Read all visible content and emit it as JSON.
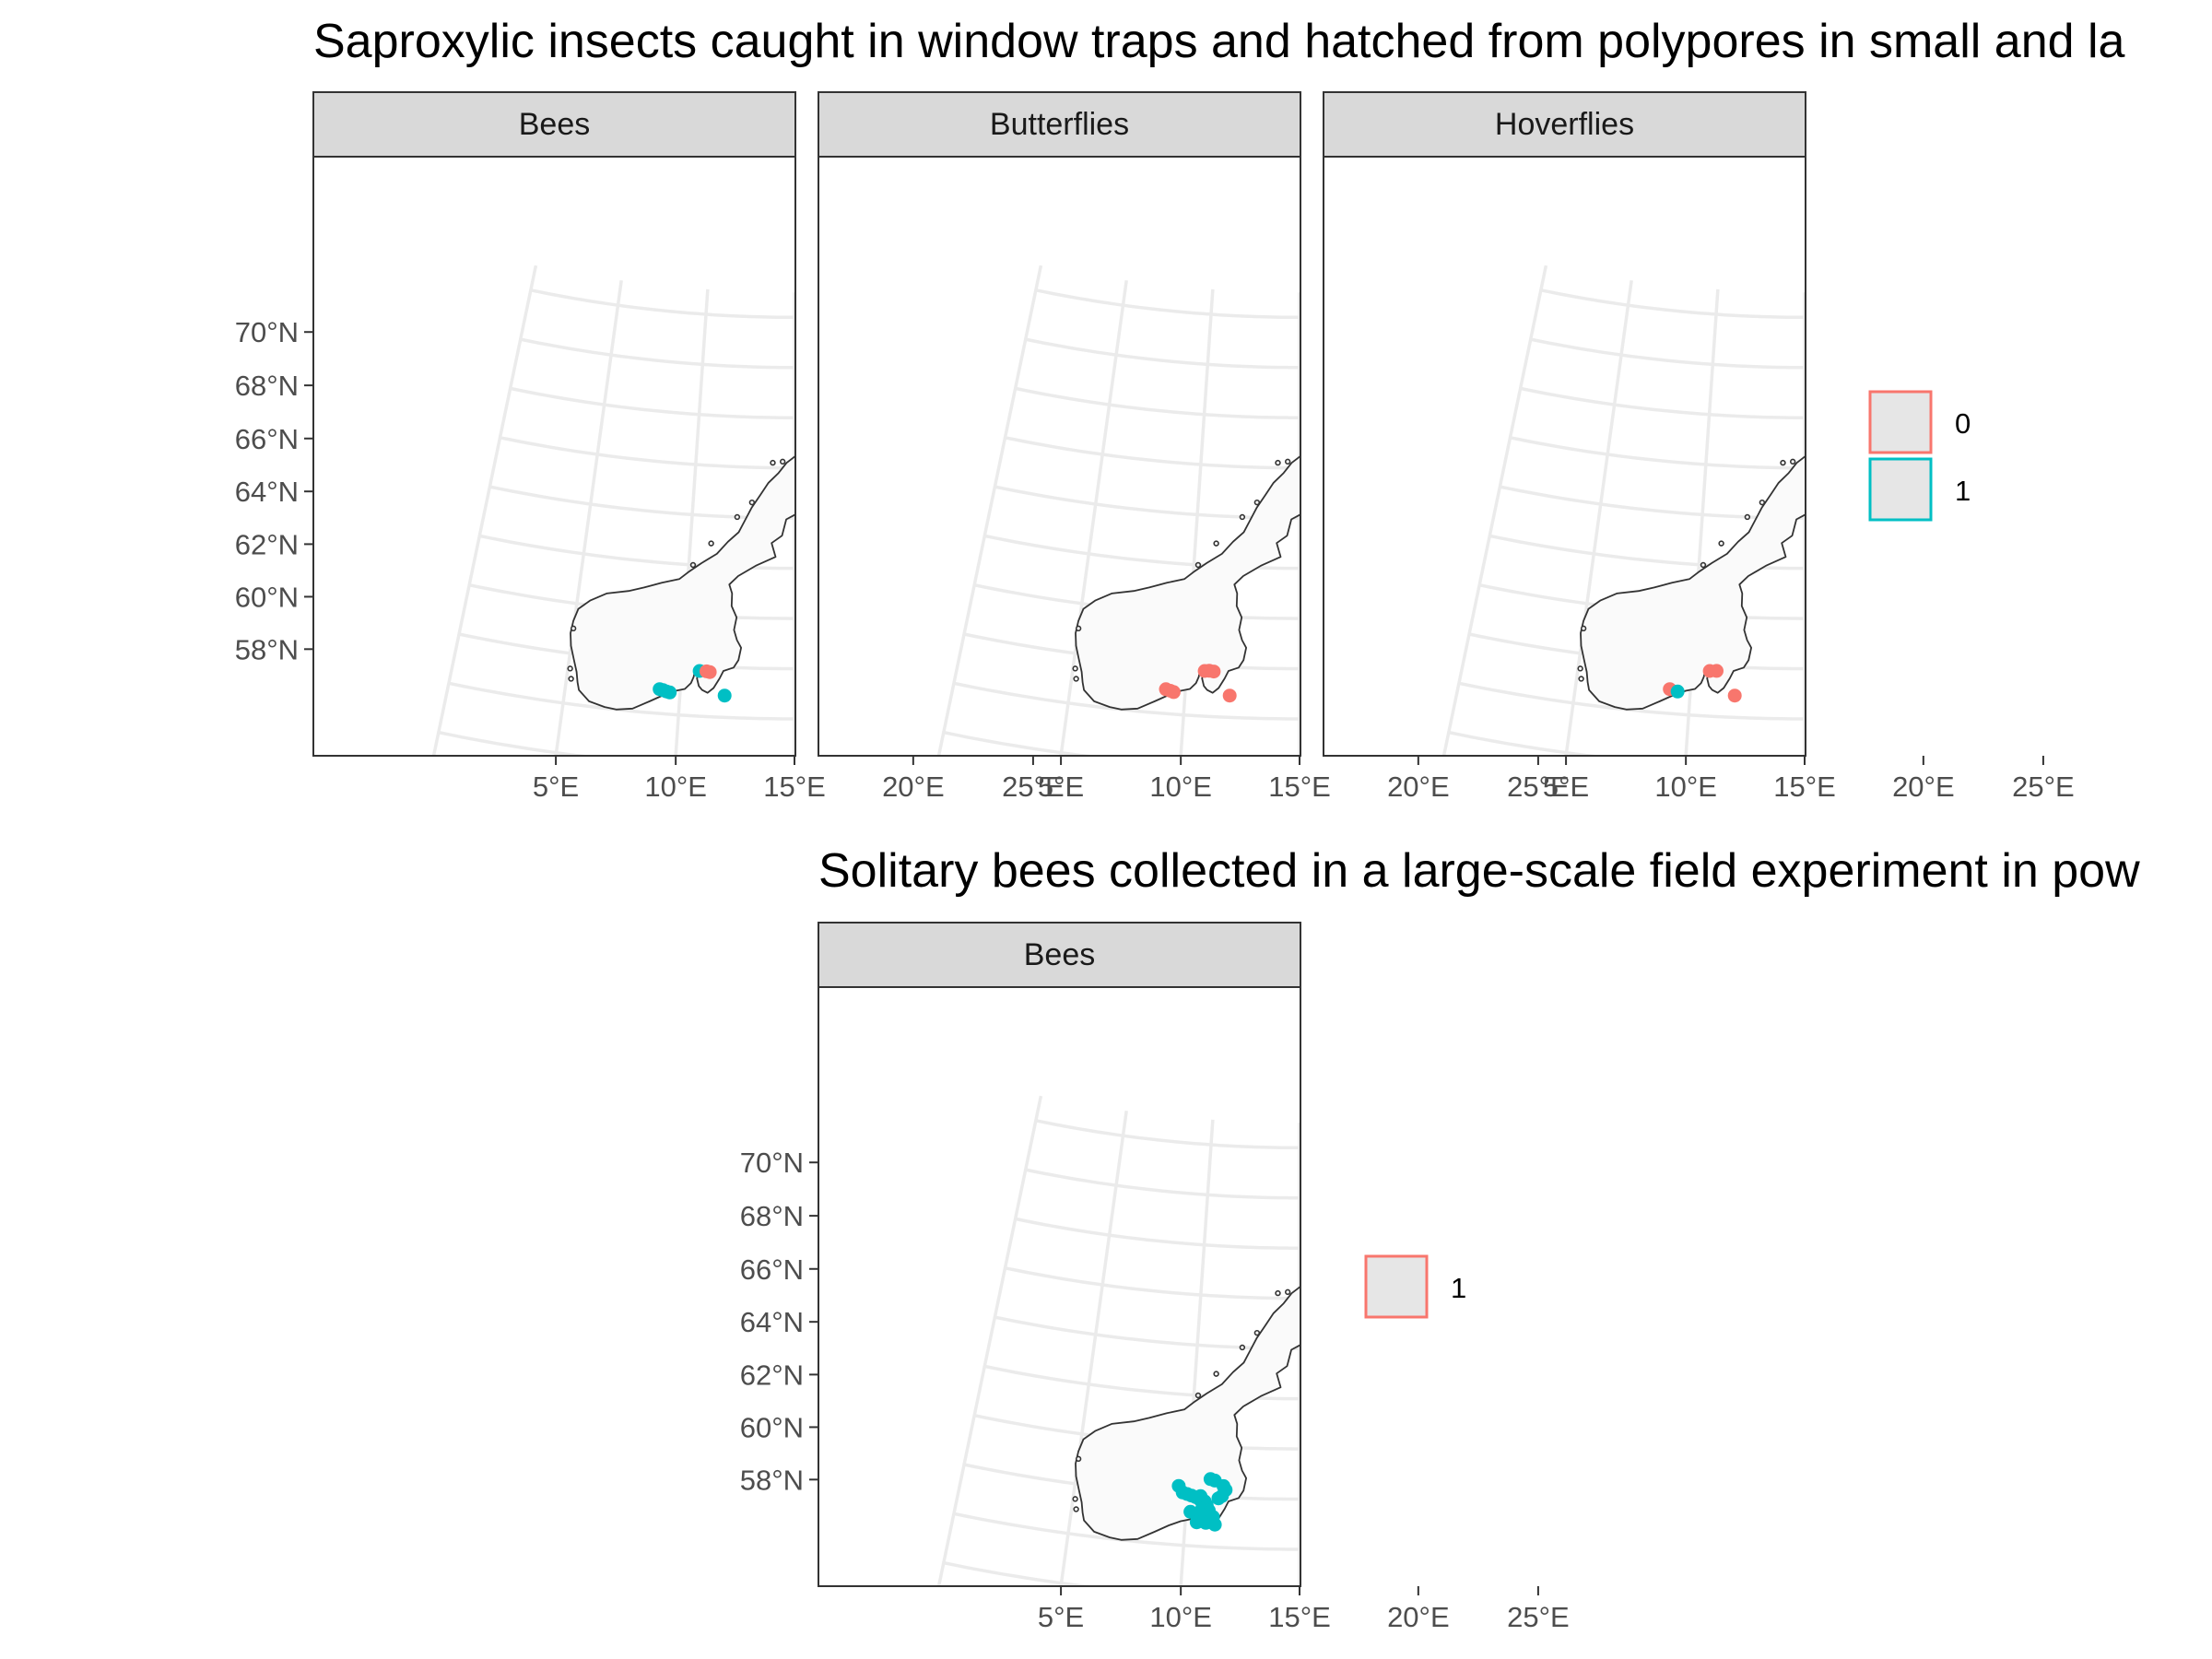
{
  "maps": [
    {
      "title": "Saproxylic insects caught in window traps and hatched from polypores in small and la",
      "facets": [
        {
          "label": "Bees",
          "points": [
            {
              "lon": 10.8,
              "lat": 59.8,
              "group": "1"
            },
            {
              "lon": 11.1,
              "lat": 59.8,
              "group": "0"
            },
            {
              "lon": 11.25,
              "lat": 59.78,
              "group": "0"
            },
            {
              "lon": 9.1,
              "lat": 58.97,
              "group": "1"
            },
            {
              "lon": 9.25,
              "lat": 58.94,
              "group": "1"
            },
            {
              "lon": 9.4,
              "lat": 58.9,
              "group": "1"
            },
            {
              "lon": 9.55,
              "lat": 58.87,
              "group": "1"
            },
            {
              "lon": 11.95,
              "lat": 58.87,
              "group": "1"
            }
          ]
        },
        {
          "label": "Butterflies",
          "points": [
            {
              "lon": 10.8,
              "lat": 59.8,
              "group": "0"
            },
            {
              "lon": 11.0,
              "lat": 59.82,
              "group": "0"
            },
            {
              "lon": 11.2,
              "lat": 59.8,
              "group": "0"
            },
            {
              "lon": 9.15,
              "lat": 58.97,
              "group": "0"
            },
            {
              "lon": 9.35,
              "lat": 58.92,
              "group": "0"
            },
            {
              "lon": 9.5,
              "lat": 58.88,
              "group": "0"
            },
            {
              "lon": 11.95,
              "lat": 58.87,
              "group": "0"
            }
          ]
        },
        {
          "label": "Hoverflies",
          "points": [
            {
              "lon": 10.8,
              "lat": 59.8,
              "group": "0"
            },
            {
              "lon": 11.1,
              "lat": 59.82,
              "group": "0"
            },
            {
              "lon": 9.1,
              "lat": 58.97,
              "group": "0"
            },
            {
              "lon": 9.45,
              "lat": 58.9,
              "group": "1"
            },
            {
              "lon": 11.95,
              "lat": 58.87,
              "group": "0"
            }
          ]
        }
      ],
      "legend": [
        {
          "label": "0",
          "color": "#F8766D"
        },
        {
          "label": "1",
          "color": "#00BFC4"
        }
      ]
    },
    {
      "title": "Solitary bees collected in a large-scale field experiment in pow",
      "facets": [
        {
          "label": "Bees",
          "points": [
            {
              "lon": 9.6,
              "lat": 60.35,
              "group": "1"
            },
            {
              "lon": 9.8,
              "lat": 60.1,
              "group": "1"
            },
            {
              "lon": 10.0,
              "lat": 60.05,
              "group": "1"
            },
            {
              "lon": 10.2,
              "lat": 60.0,
              "group": "1"
            },
            {
              "lon": 10.4,
              "lat": 59.95,
              "group": "1"
            },
            {
              "lon": 10.6,
              "lat": 60.0,
              "group": "1"
            },
            {
              "lon": 10.6,
              "lat": 59.85,
              "group": "1"
            },
            {
              "lon": 10.8,
              "lat": 59.8,
              "group": "1"
            },
            {
              "lon": 10.9,
              "lat": 59.65,
              "group": "1"
            },
            {
              "lon": 10.7,
              "lat": 59.5,
              "group": "1"
            },
            {
              "lon": 11.0,
              "lat": 59.45,
              "group": "1"
            },
            {
              "lon": 10.2,
              "lat": 59.35,
              "group": "1"
            },
            {
              "lon": 10.6,
              "lat": 59.3,
              "group": "1"
            },
            {
              "lon": 11.2,
              "lat": 59.2,
              "group": "1"
            },
            {
              "lon": 10.5,
              "lat": 58.95,
              "group": "1"
            },
            {
              "lon": 10.9,
              "lat": 58.95,
              "group": "1"
            },
            {
              "lon": 11.3,
              "lat": 58.9,
              "group": "1"
            },
            {
              "lon": 11.0,
              "lat": 60.7,
              "group": "1"
            },
            {
              "lon": 11.2,
              "lat": 60.65,
              "group": "1"
            },
            {
              "lon": 11.6,
              "lat": 60.45,
              "group": "1"
            },
            {
              "lon": 11.7,
              "lat": 60.3,
              "group": "1"
            },
            {
              "lon": 11.55,
              "lat": 60.05,
              "group": "1"
            },
            {
              "lon": 11.4,
              "lat": 59.95,
              "group": "1"
            }
          ]
        }
      ],
      "legend": [
        {
          "label": "1",
          "color": "#F8766D"
        }
      ]
    }
  ],
  "axes": {
    "lat_ticks": [
      58,
      60,
      62,
      64,
      66,
      68,
      70
    ],
    "lat_labels": [
      "58°N",
      "60°N",
      "62°N",
      "64°N",
      "66°N",
      "68°N",
      "70°N"
    ],
    "lon_ticks": [
      5,
      10,
      15,
      20,
      25
    ],
    "lon_labels": [
      "5°E",
      "10°E",
      "15°E",
      "20°E",
      "25°E"
    ]
  },
  "colors": {
    "group_0": "#F8766D",
    "group_1": "#00BFC4",
    "land_fill": "#fafafa",
    "border": "#333333",
    "graticule": "#ebebeb",
    "strip": "#d9d9d9"
  }
}
